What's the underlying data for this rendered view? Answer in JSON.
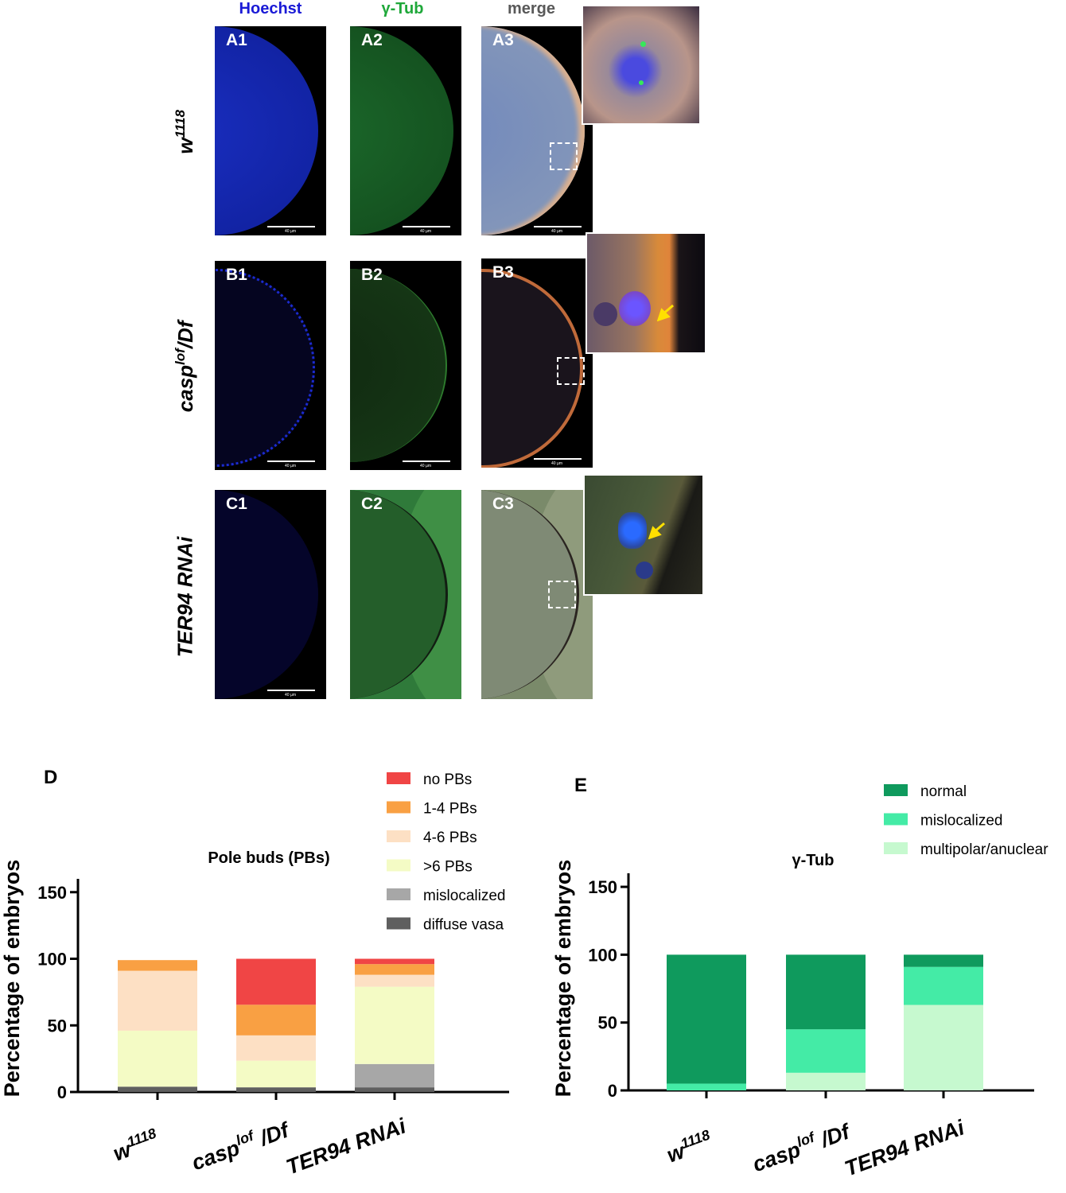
{
  "micrograph": {
    "column_headers": [
      {
        "text": "Hoechst",
        "color": "#1a1ad6"
      },
      {
        "text": "γ-Tub",
        "color": "#1fa83a"
      },
      {
        "text": "merge",
        "color": "#595959"
      }
    ],
    "rows": [
      {
        "label": "w1118",
        "panels": [
          "A1",
          "A2",
          "A3"
        ]
      },
      {
        "label": "casplof/Df",
        "panels": [
          "B1",
          "B2",
          "B3"
        ]
      },
      {
        "label": "TER94 RNAi",
        "panels": [
          "C1",
          "C2",
          "C3"
        ]
      }
    ],
    "scale_bar_text": "40 µm"
  },
  "chart_data": [
    {
      "type": "bar",
      "stacked": true,
      "panel_letter": "D",
      "title": "Pole buds (PBs)",
      "ylabel": "Percentage of embryos",
      "ylim": [
        0,
        160
      ],
      "yticks": [
        0,
        50,
        100,
        150
      ],
      "categories": [
        "w1118",
        "casplof/Df",
        "TER94 RNAi"
      ],
      "legend_position": "top-right",
      "series": [
        {
          "name": "diffuse vasa",
          "color": "#5f5f5f",
          "values": [
            4,
            3.5,
            3.5
          ]
        },
        {
          "name": "mislocalized",
          "color": "#a7a7a7",
          "values": [
            0,
            0,
            17.5
          ]
        },
        {
          "name": ">6 PBs",
          "color": "#f4fbc5",
          "values": [
            42,
            20,
            58
          ]
        },
        {
          "name": "4-6 PBs",
          "color": "#fde0c4",
          "values": [
            45,
            19,
            9
          ]
        },
        {
          "name": "1-4 PBs",
          "color": "#f9a043",
          "values": [
            8,
            23,
            8
          ]
        },
        {
          "name": "no PBs",
          "color": "#f04545",
          "values": [
            0,
            34.5,
            4
          ]
        }
      ]
    },
    {
      "type": "bar",
      "stacked": true,
      "panel_letter": "E",
      "title": "γ-Tub",
      "ylabel": "Percentage of embryos",
      "ylim": [
        0,
        160
      ],
      "yticks": [
        0,
        50,
        100,
        150
      ],
      "categories": [
        "w1118",
        "casplof/Df",
        "TER94 RNAi"
      ],
      "legend_position": "top-right",
      "series": [
        {
          "name": "multipolar/anuclear",
          "color": "#c6f9cf",
          "values": [
            0,
            13,
            63
          ]
        },
        {
          "name": "mislocalized",
          "color": "#44eba6",
          "values": [
            5,
            32,
            28
          ]
        },
        {
          "name": "normal",
          "color": "#0f9a5d",
          "values": [
            95,
            55,
            9
          ]
        }
      ]
    }
  ]
}
